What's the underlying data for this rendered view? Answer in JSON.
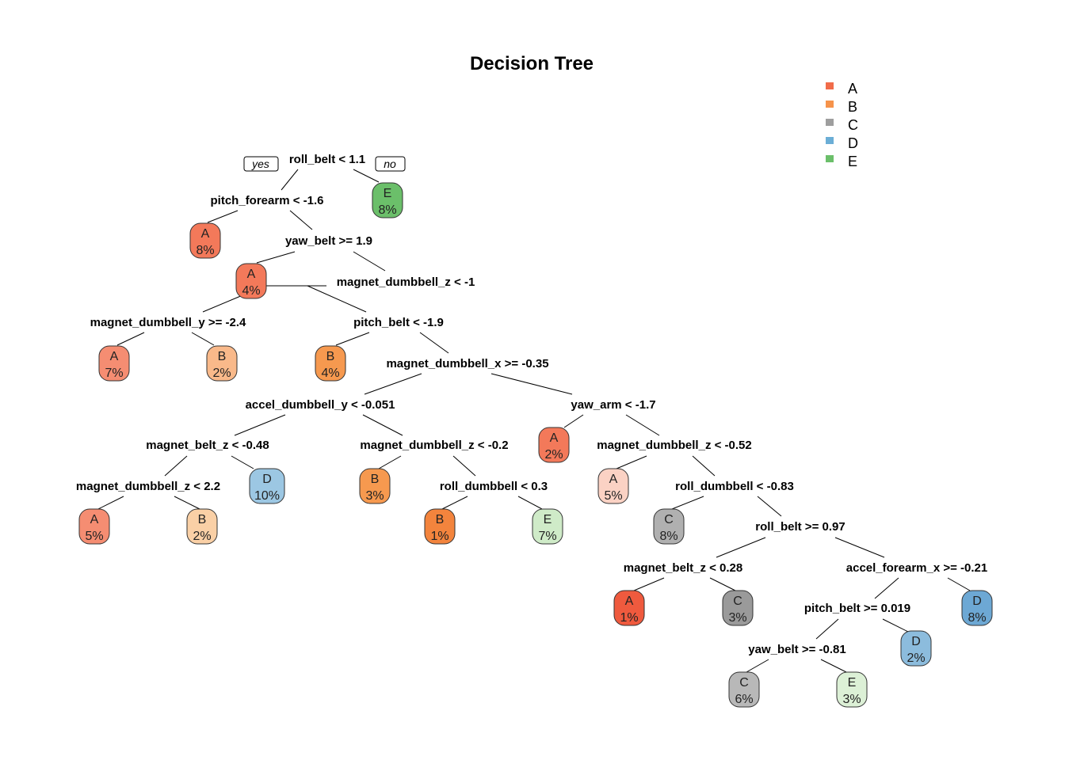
{
  "title": "Decision Tree",
  "branch_labels": {
    "yes": "yes",
    "no": "no"
  },
  "legend": [
    {
      "label": "A",
      "color": "#F16C4A"
    },
    {
      "label": "B",
      "color": "#F6934B"
    },
    {
      "label": "C",
      "color": "#9E9E9E"
    },
    {
      "label": "D",
      "color": "#6BAED6"
    },
    {
      "label": "E",
      "color": "#6BBF6A"
    }
  ],
  "splits": [
    {
      "id": "s1",
      "label": "roll_belt < 1.1"
    },
    {
      "id": "s2",
      "label": "pitch_forearm < -1.6"
    },
    {
      "id": "s3",
      "label": "yaw_belt >= 1.9"
    },
    {
      "id": "s4",
      "label": "magnet_dumbbell_z < -1"
    },
    {
      "id": "s5",
      "label": "magnet_dumbbell_y >= -2.4"
    },
    {
      "id": "s6",
      "label": "pitch_belt < -1.9"
    },
    {
      "id": "s7",
      "label": "magnet_dumbbell_x >= -0.35"
    },
    {
      "id": "s8",
      "label": "accel_dumbbell_y < -0.051"
    },
    {
      "id": "s9",
      "label": "yaw_arm < -1.7"
    },
    {
      "id": "s10",
      "label": "magnet_belt_z < -0.48"
    },
    {
      "id": "s11",
      "label": "magnet_dumbbell_z < -0.2"
    },
    {
      "id": "s12",
      "label": "magnet_dumbbell_z < -0.52"
    },
    {
      "id": "s13",
      "label": "magnet_dumbbell_z < 2.2"
    },
    {
      "id": "s14",
      "label": "roll_dumbbell < 0.3"
    },
    {
      "id": "s15",
      "label": "roll_dumbbell < -0.83"
    },
    {
      "id": "s16",
      "label": "roll_belt >= 0.97"
    },
    {
      "id": "s17",
      "label": "magnet_belt_z < 0.28"
    },
    {
      "id": "s18",
      "label": "accel_forearm_x >= -0.21"
    },
    {
      "id": "s19",
      "label": "pitch_belt >= 0.019"
    },
    {
      "id": "s20",
      "label": "yaw_belt >= -0.81"
    }
  ],
  "leaves": [
    {
      "id": "l1",
      "class": "E",
      "pct": "8%",
      "color": "#6BBF6A"
    },
    {
      "id": "l2",
      "class": "A",
      "pct": "8%",
      "color": "#F3795A"
    },
    {
      "id": "l3",
      "class": "A",
      "pct": "4%",
      "color": "#F3795A"
    },
    {
      "id": "l4",
      "class": "A",
      "pct": "7%",
      "color": "#F58D72"
    },
    {
      "id": "l5",
      "class": "B",
      "pct": "2%",
      "color": "#F9B98A"
    },
    {
      "id": "l6",
      "class": "B",
      "pct": "4%",
      "color": "#F6994F"
    },
    {
      "id": "l7",
      "class": "A",
      "pct": "2%",
      "color": "#F3795A"
    },
    {
      "id": "l8",
      "class": "D",
      "pct": "10%",
      "color": "#9CC7E3"
    },
    {
      "id": "l9",
      "class": "B",
      "pct": "3%",
      "color": "#F6994F"
    },
    {
      "id": "l10",
      "class": "A",
      "pct": "5%",
      "color": "#FBD2C4"
    },
    {
      "id": "l11",
      "class": "A",
      "pct": "5%",
      "color": "#F58D72"
    },
    {
      "id": "l12",
      "class": "B",
      "pct": "2%",
      "color": "#FAD0A6"
    },
    {
      "id": "l13",
      "class": "B",
      "pct": "1%",
      "color": "#F3843D"
    },
    {
      "id": "l14",
      "class": "E",
      "pct": "7%",
      "color": "#CFEBC8"
    },
    {
      "id": "l15",
      "class": "C",
      "pct": "8%",
      "color": "#B0B0B0"
    },
    {
      "id": "l16",
      "class": "A",
      "pct": "1%",
      "color": "#EF5A3E"
    },
    {
      "id": "l17",
      "class": "C",
      "pct": "3%",
      "color": "#9A9A9A"
    },
    {
      "id": "l18",
      "class": "D",
      "pct": "8%",
      "color": "#6DA8D4"
    },
    {
      "id": "l19",
      "class": "D",
      "pct": "2%",
      "color": "#8CBCDD"
    },
    {
      "id": "l20",
      "class": "C",
      "pct": "6%",
      "color": "#B8B8B8"
    },
    {
      "id": "l21",
      "class": "E",
      "pct": "3%",
      "color": "#DCF0D6"
    }
  ]
}
